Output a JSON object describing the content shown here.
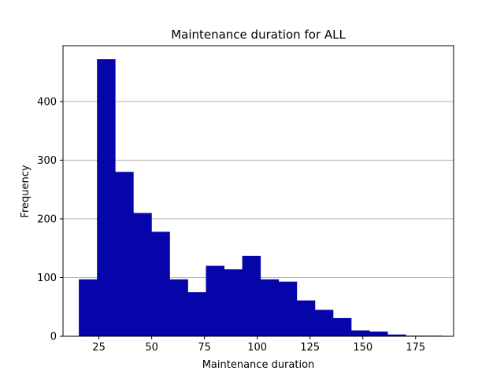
{
  "chart_data": {
    "type": "bar",
    "subtype": "histogram",
    "title": "Maintenance duration for ALL",
    "xlabel": "Maintenance duration",
    "ylabel": "Frequency",
    "xlim": [
      8,
      193
    ],
    "ylim": [
      0,
      495
    ],
    "xticks": [
      25,
      50,
      75,
      100,
      125,
      150,
      175
    ],
    "yticks": [
      0,
      100,
      200,
      300,
      400
    ],
    "grid": "y-major",
    "legend": "none",
    "bin_edges": [
      15.5,
      24.1,
      32.7,
      41.3,
      49.9,
      58.5,
      67.1,
      75.7,
      84.3,
      92.9,
      101.5,
      110.1,
      118.7,
      127.3,
      135.9,
      144.5,
      153.1,
      161.7,
      170.3,
      178.9,
      187.5
    ],
    "values": [
      97,
      472,
      280,
      210,
      178,
      97,
      75,
      120,
      114,
      137,
      97,
      93,
      61,
      45,
      31,
      10,
      8,
      3,
      1,
      1
    ],
    "bar_color": "#0505aa",
    "grid_color": "#b0b0b0"
  }
}
